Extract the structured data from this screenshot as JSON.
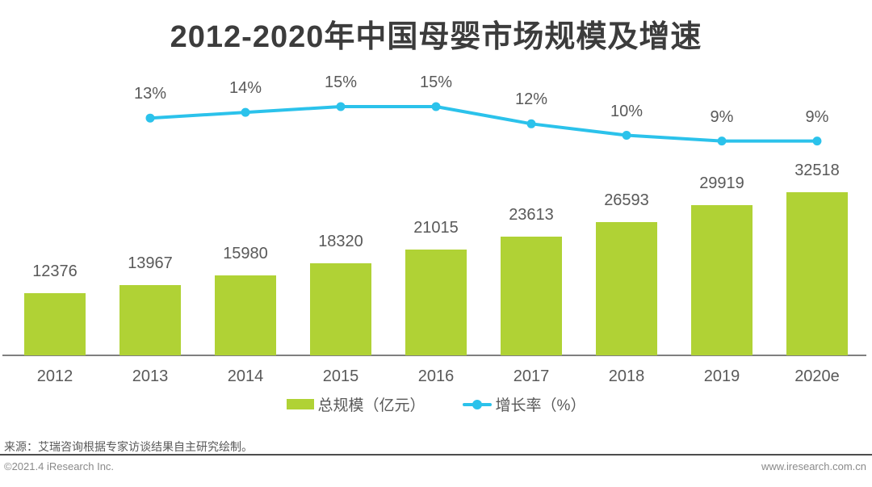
{
  "title": "2012-2020年中国母婴市场规模及增速",
  "chart_data": {
    "type": "bar",
    "subtype": "bar-line-combo",
    "title": "2012-2020年中国母婴市场规模及增速",
    "categories": [
      "2012",
      "2013",
      "2014",
      "2015",
      "2016",
      "2017",
      "2018",
      "2019",
      "2020e"
    ],
    "series": [
      {
        "name": "总规模（亿元）",
        "type": "bar",
        "color": "#b0d235",
        "values": [
          12376,
          13967,
          15980,
          18320,
          21015,
          23613,
          26593,
          29919,
          32518
        ]
      },
      {
        "name": "增长率（%）",
        "type": "line",
        "color": "#2bc2eb",
        "values": [
          null,
          13,
          14,
          15,
          15,
          12,
          10,
          9,
          9
        ],
        "labels": [
          "",
          "13%",
          "14%",
          "15%",
          "15%",
          "12%",
          "10%",
          "9%",
          "9%"
        ]
      }
    ],
    "xlabel": "",
    "ylabel": "",
    "grid": false,
    "y_axis_visible": false,
    "value_labels": true,
    "legend_position": "bottom"
  },
  "legend": {
    "bar_label": "总规模（亿元）",
    "line_label": "增长率（%）"
  },
  "footer": {
    "source": "来源：艾瑞咨询根据专家访谈结果自主研究绘制。",
    "copyright": "©2021.4 iResearch Inc.",
    "website": "www.iresearch.com.cn"
  },
  "colors": {
    "bar": "#b0d235",
    "line": "#2bc2eb",
    "label": "#595959",
    "axis": "#7f7f7f",
    "title": "#3c3c3c"
  }
}
